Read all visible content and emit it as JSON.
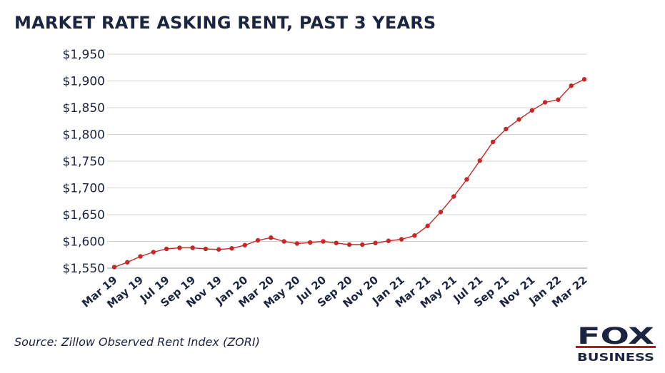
{
  "title": "MARKET RATE ASKING RENT, PAST 3 YEARS",
  "source": "Source: Zillow Observed Rent Index (ZORI)",
  "logo": {
    "primary": "FOX",
    "secondary": "BUSINESS",
    "color": "#1b2440",
    "accent": "#b71c1c"
  },
  "chart_data": {
    "type": "line",
    "title": "MARKET RATE ASKING RENT, PAST 3 YEARS",
    "xlabel": "",
    "ylabel": "",
    "ylim": [
      1550,
      1950
    ],
    "yticks": [
      1550,
      1600,
      1650,
      1700,
      1750,
      1800,
      1850,
      1900,
      1950
    ],
    "ytick_labels": [
      "$1,550",
      "$1,600",
      "$1,650",
      "$1,700",
      "$1,750",
      "$1,800",
      "$1,850",
      "$1,900",
      "$1,950"
    ],
    "grid": "horizontal",
    "x": [
      "Mar 19",
      "Apr 19",
      "May 19",
      "Jun 19",
      "Jul 19",
      "Aug 19",
      "Sep 19",
      "Oct 19",
      "Nov 19",
      "Dec 19",
      "Jan 20",
      "Feb 20",
      "Mar 20",
      "Apr 20",
      "May 20",
      "Jun 20",
      "Jul 20",
      "Aug 20",
      "Sep 20",
      "Oct 20",
      "Nov 20",
      "Dec 20",
      "Jan 21",
      "Feb 21",
      "Mar 21",
      "Apr 21",
      "May 21",
      "Jun 21",
      "Jul 21",
      "Aug 21",
      "Sep 21",
      "Oct 21",
      "Nov 21",
      "Dec 21",
      "Jan 22",
      "Feb 22",
      "Mar 22"
    ],
    "xtick_labels": [
      "Mar 19",
      "May 19",
      "Jul 19",
      "Sep 19",
      "Nov 19",
      "Jan 20",
      "Mar 20",
      "May 20",
      "Jul 20",
      "Sep 20",
      "Nov 20",
      "Jan 21",
      "Mar 21",
      "May 21",
      "Jul 21",
      "Sep 21",
      "Nov 21",
      "Jan 22",
      "Mar 22"
    ],
    "series": [
      {
        "color": "#c62828",
        "values": [
          1552,
          1561,
          1572,
          1580,
          1586,
          1588,
          1588,
          1586,
          1585,
          1587,
          1593,
          1602,
          1607,
          1600,
          1596,
          1598,
          1600,
          1597,
          1594,
          1594,
          1597,
          1601,
          1604,
          1611,
          1629,
          1655,
          1684,
          1716,
          1751,
          1786,
          1810,
          1828,
          1845,
          1860,
          1865,
          1891,
          1903
        ]
      }
    ]
  }
}
